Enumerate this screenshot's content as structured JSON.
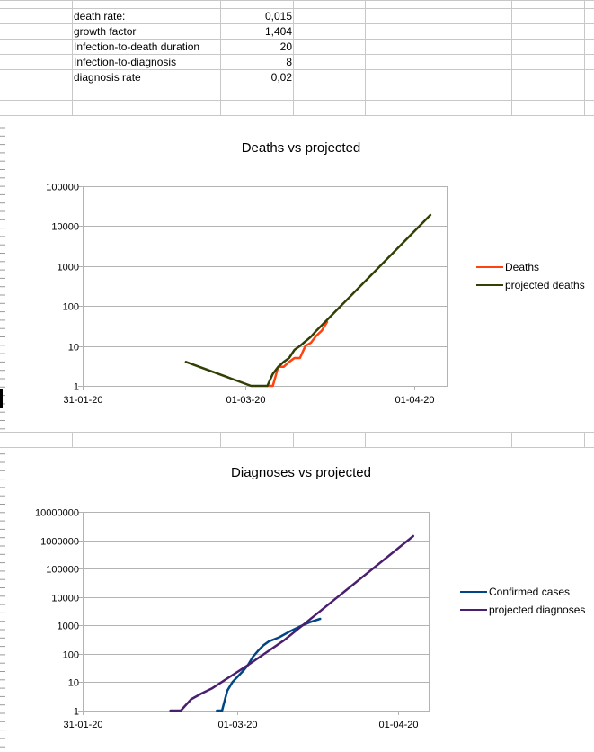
{
  "sheet": {
    "rows": [
      {
        "label": "death rate:",
        "value": "0,015"
      },
      {
        "label": "growth factor",
        "value": "1,404"
      },
      {
        "label": "Infection-to-death duration",
        "value": "20"
      },
      {
        "label": "Infection-to-diagnosis",
        "value": "8"
      },
      {
        "label": "diagnosis rate",
        "value": "0,02"
      }
    ]
  },
  "chart_data": [
    {
      "type": "line",
      "title": "Deaths vs projected",
      "yscale": "log",
      "ylim": [
        1,
        100000
      ],
      "yticks": [
        "100000",
        "10000",
        "1000",
        "100",
        "10",
        "1"
      ],
      "xlim": [
        "2020-01-31",
        "2020-04-07"
      ],
      "xticks": [
        {
          "date": "2020-01-31",
          "label": "31-01-20"
        },
        {
          "date": "2020-03-01",
          "label": "01-03-20"
        },
        {
          "date": "2020-04-01",
          "label": "01-04-20"
        }
      ],
      "grid": true,
      "legend": "right",
      "series": [
        {
          "name": "Deaths",
          "color": "#ff420e",
          "points": [
            [
              "2020-03-05",
              1
            ],
            [
              "2020-03-06",
              1
            ],
            [
              "2020-03-07",
              3
            ],
            [
              "2020-03-08",
              3
            ],
            [
              "2020-03-09",
              4
            ],
            [
              "2020-03-10",
              5
            ],
            [
              "2020-03-11",
              5
            ],
            [
              "2020-03-12",
              10
            ],
            [
              "2020-03-13",
              12
            ],
            [
              "2020-03-14",
              18
            ],
            [
              "2020-03-15",
              24
            ],
            [
              "2020-03-16",
              40
            ]
          ]
        },
        {
          "name": "projected deaths",
          "color": "#314004",
          "points": [
            [
              "2020-02-19",
              4
            ],
            [
              "2020-03-02",
              1
            ],
            [
              "2020-03-05",
              1
            ],
            [
              "2020-03-06",
              2
            ],
            [
              "2020-03-07",
              3
            ],
            [
              "2020-03-08",
              4
            ],
            [
              "2020-03-09",
              5
            ],
            [
              "2020-03-10",
              8
            ],
            [
              "2020-03-11",
              10
            ],
            [
              "2020-03-12",
              13
            ],
            [
              "2020-03-13",
              17
            ],
            [
              "2020-03-14",
              24
            ],
            [
              "2020-03-16",
              45
            ],
            [
              "2020-04-04",
              19000
            ]
          ]
        }
      ]
    },
    {
      "type": "line",
      "title": "Diagnoses vs projected",
      "yscale": "log",
      "ylim": [
        1,
        10000000
      ],
      "yticks": [
        "10000000",
        "1000000",
        "100000",
        "10000",
        "1000",
        "100",
        "10",
        "1"
      ],
      "xlim": [
        "2020-01-31",
        "2020-04-07"
      ],
      "xticks": [
        {
          "date": "2020-01-31",
          "label": "31-01-20"
        },
        {
          "date": "2020-03-01",
          "label": "01-03-20"
        },
        {
          "date": "2020-04-01",
          "label": "01-04-20"
        }
      ],
      "grid": true,
      "legend": "right",
      "series": [
        {
          "name": "Confirmed cases",
          "color": "#004586",
          "points": [
            [
              "2020-02-26",
              1
            ],
            [
              "2020-02-27",
              1
            ],
            [
              "2020-02-28",
              5
            ],
            [
              "2020-02-29",
              10
            ],
            [
              "2020-03-02",
              24
            ],
            [
              "2020-03-03",
              40
            ],
            [
              "2020-03-04",
              80
            ],
            [
              "2020-03-05",
              130
            ],
            [
              "2020-03-06",
              200
            ],
            [
              "2020-03-07",
              270
            ],
            [
              "2020-03-09",
              380
            ],
            [
              "2020-03-11",
              600
            ],
            [
              "2020-03-13",
              900
            ],
            [
              "2020-03-15",
              1300
            ],
            [
              "2020-03-17",
              1700
            ]
          ]
        },
        {
          "name": "projected diagnoses",
          "color": "#4b1f6f",
          "points": [
            [
              "2020-02-17",
              1
            ],
            [
              "2020-02-19",
              1
            ],
            [
              "2020-02-21",
              2.5
            ],
            [
              "2020-02-23",
              4
            ],
            [
              "2020-02-25",
              6
            ],
            [
              "2020-03-03",
              40
            ],
            [
              "2020-03-10",
              300
            ],
            [
              "2020-04-04",
              1400000
            ]
          ]
        }
      ]
    }
  ]
}
